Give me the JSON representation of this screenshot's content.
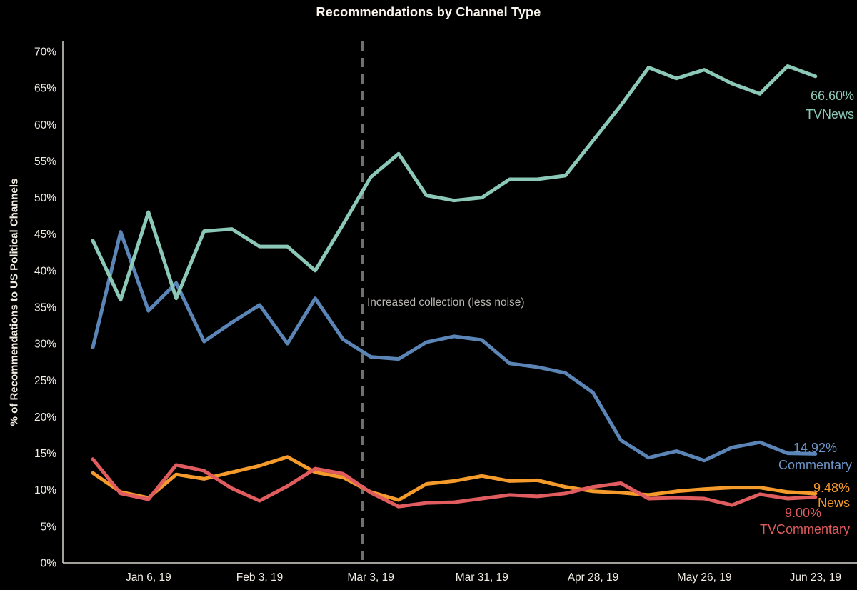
{
  "title": "Recommendations by Channel Type",
  "annotation": "Increased collection (less noise)",
  "colors": {
    "background": "#000000",
    "title_text": "#f8f4ec",
    "axis_text": "#f0ece2",
    "axis_line": "#d9d6cf",
    "dashed_line": "#707070",
    "annotation_text": "#b8b5b0",
    "tvnews": "#8bc8b7",
    "commentary": "#5b85b7",
    "commentary_label": "#6e95c8",
    "news": "#f59b2c",
    "tvcommentary": "#e15c5e"
  },
  "chart_data": {
    "type": "line",
    "title": "Recommendations by Channel Type",
    "xlabel": "",
    "ylabel": "% of Recommendations to US Political Channels",
    "ylim": [
      0,
      70
    ],
    "grid": false,
    "x_unit": "week-index",
    "x": [
      0,
      1,
      2,
      3,
      4,
      5,
      6,
      7,
      8,
      9,
      10,
      11,
      12,
      13,
      14,
      15,
      16,
      17,
      18,
      19,
      20,
      21,
      22,
      23,
      24,
      25,
      26
    ],
    "x_ticks": [
      {
        "index": 2,
        "label": "Jan 6, 19"
      },
      {
        "index": 6,
        "label": "Feb 3, 19"
      },
      {
        "index": 10,
        "label": "Mar 3, 19"
      },
      {
        "index": 14,
        "label": "Mar 31, 19"
      },
      {
        "index": 18,
        "label": "Apr 28, 19"
      },
      {
        "index": 22,
        "label": "May 26, 19"
      },
      {
        "index": 26,
        "label": "Jun 23, 19"
      }
    ],
    "y_ticks": [
      {
        "value": 0,
        "label": "0%"
      },
      {
        "value": 5,
        "label": "5%"
      },
      {
        "value": 10,
        "label": "10%"
      },
      {
        "value": 15,
        "label": "15%"
      },
      {
        "value": 20,
        "label": "20%"
      },
      {
        "value": 25,
        "label": "25%"
      },
      {
        "value": 30,
        "label": "30%"
      },
      {
        "value": 35,
        "label": "35%"
      },
      {
        "value": 40,
        "label": "40%"
      },
      {
        "value": 45,
        "label": "45%"
      },
      {
        "value": 50,
        "label": "50%"
      },
      {
        "value": 55,
        "label": "55%"
      },
      {
        "value": 60,
        "label": "60%"
      },
      {
        "value": 65,
        "label": "65%"
      },
      {
        "value": 70,
        "label": "70%"
      }
    ],
    "reference_line": {
      "style": "dashed",
      "near_x_tick": "Mar 3, 19",
      "label": "Increased collection (less noise)"
    },
    "series": [
      {
        "name": "TVNews",
        "end_label": "66.60%",
        "color_key": "tvnews",
        "values": [
          44.1,
          36.0,
          48.0,
          36.2,
          45.4,
          45.7,
          43.3,
          43.3,
          40.0,
          46.3,
          52.8,
          56.0,
          50.3,
          49.6,
          50.0,
          52.5,
          52.5,
          53.0,
          57.8,
          62.6,
          67.8,
          66.3,
          67.5,
          65.6,
          64.2,
          68.0,
          66.6
        ]
      },
      {
        "name": "Commentary",
        "end_label": "14.92%",
        "color_key": "commentary",
        "values": [
          29.5,
          45.3,
          34.5,
          38.3,
          30.3,
          32.9,
          35.3,
          30.0,
          36.2,
          30.6,
          28.2,
          27.9,
          30.2,
          31.0,
          30.5,
          27.3,
          26.8,
          26.0,
          23.3,
          16.8,
          14.4,
          15.3,
          14.0,
          15.8,
          16.5,
          15.0,
          14.92
        ]
      },
      {
        "name": "News",
        "end_label": "9.48%",
        "color_key": "news",
        "values": [
          12.3,
          9.7,
          8.9,
          12.1,
          11.5,
          12.4,
          13.3,
          14.5,
          12.4,
          11.7,
          9.7,
          8.6,
          10.8,
          11.2,
          11.9,
          11.2,
          11.3,
          10.4,
          9.8,
          9.6,
          9.3,
          9.8,
          10.1,
          10.3,
          10.3,
          9.7,
          9.48
        ]
      },
      {
        "name": "TVCommentary",
        "end_label": "9.00%",
        "color_key": "tvcommentary",
        "values": [
          14.2,
          9.5,
          8.7,
          13.4,
          12.6,
          10.2,
          8.5,
          10.5,
          12.9,
          12.2,
          9.6,
          7.7,
          8.2,
          8.3,
          8.8,
          9.3,
          9.1,
          9.5,
          10.4,
          10.9,
          8.8,
          8.9,
          8.8,
          7.9,
          9.4,
          8.8,
          9.0
        ]
      }
    ]
  }
}
